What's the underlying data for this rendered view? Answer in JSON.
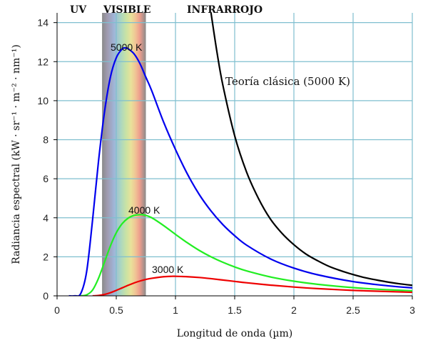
{
  "chart_data": {
    "type": "line",
    "xlabel": "Longitud de onda (µm)",
    "ylabel": "Radiancia espectral (kW · sr⁻¹ · m⁻² · nm⁻¹)",
    "xlim": [
      0,
      3
    ],
    "ylim": [
      0,
      14.5
    ],
    "xticks": [
      "0",
      "0.5",
      "1",
      "1.5",
      "2",
      "2.5",
      "3"
    ],
    "yticks": [
      "0",
      "2",
      "4",
      "6",
      "8",
      "10",
      "12",
      "14"
    ],
    "grid": true,
    "band_labels": {
      "uv": "UV",
      "visible": "VISIBLE",
      "infrared": "INFRARROJO"
    },
    "visible_band_range": [
      0.38,
      0.75
    ],
    "series": [
      {
        "name": "5000 K",
        "color": "#0000ee",
        "x": [
          0.1,
          0.15,
          0.2,
          0.25,
          0.3,
          0.35,
          0.4,
          0.45,
          0.5,
          0.55,
          0.58,
          0.6,
          0.65,
          0.7,
          0.75,
          0.8,
          0.9,
          1.0,
          1.1,
          1.2,
          1.3,
          1.4,
          1.5,
          1.6,
          1.8,
          2.0,
          2.2,
          2.5,
          2.8,
          3.0
        ],
        "y": [
          0.0,
          0.0,
          0.12,
          1.25,
          3.9,
          6.9,
          9.4,
          11.2,
          12.2,
          12.65,
          12.7,
          12.66,
          12.4,
          11.9,
          11.2,
          10.5,
          8.9,
          7.5,
          6.25,
          5.2,
          4.35,
          3.65,
          3.08,
          2.6,
          1.9,
          1.42,
          1.08,
          0.73,
          0.51,
          0.41
        ]
      },
      {
        "name": "4000 K",
        "color": "#22ee22",
        "x": [
          0.2,
          0.25,
          0.3,
          0.35,
          0.4,
          0.45,
          0.5,
          0.55,
          0.6,
          0.65,
          0.7,
          0.72,
          0.75,
          0.8,
          0.9,
          1.0,
          1.1,
          1.2,
          1.3,
          1.4,
          1.5,
          1.6,
          1.8,
          2.0,
          2.2,
          2.5,
          2.8,
          3.0
        ],
        "y": [
          0.0,
          0.05,
          0.3,
          0.9,
          1.72,
          2.55,
          3.23,
          3.7,
          3.98,
          4.12,
          4.16,
          4.16,
          4.12,
          4.0,
          3.6,
          3.15,
          2.72,
          2.33,
          2.0,
          1.72,
          1.48,
          1.28,
          0.97,
          0.75,
          0.59,
          0.42,
          0.31,
          0.26
        ]
      },
      {
        "name": "3000 K",
        "color": "#ee0000",
        "x": [
          0.3,
          0.35,
          0.4,
          0.45,
          0.5,
          0.55,
          0.6,
          0.65,
          0.7,
          0.75,
          0.8,
          0.9,
          0.97,
          1.0,
          1.1,
          1.2,
          1.3,
          1.4,
          1.5,
          1.6,
          1.8,
          2.0,
          2.2,
          2.5,
          2.8,
          3.0
        ],
        "y": [
          0.0,
          0.02,
          0.07,
          0.16,
          0.28,
          0.41,
          0.54,
          0.66,
          0.76,
          0.84,
          0.9,
          0.98,
          1.0,
          1.0,
          0.98,
          0.94,
          0.88,
          0.81,
          0.74,
          0.67,
          0.55,
          0.45,
          0.37,
          0.28,
          0.22,
          0.18
        ]
      },
      {
        "name": "Teoría clásica (5000 K)",
        "color": "#000000",
        "x": [
          1.3,
          1.35,
          1.4,
          1.5,
          1.6,
          1.7,
          1.8,
          1.9,
          2.0,
          2.1,
          2.2,
          2.3,
          2.4,
          2.5,
          2.6,
          2.7,
          2.8,
          2.9,
          3.0
        ],
        "y": [
          14.5,
          12.5,
          10.8,
          8.2,
          6.35,
          5.0,
          3.95,
          3.2,
          2.62,
          2.15,
          1.8,
          1.5,
          1.28,
          1.09,
          0.93,
          0.81,
          0.7,
          0.61,
          0.54
        ]
      }
    ]
  }
}
